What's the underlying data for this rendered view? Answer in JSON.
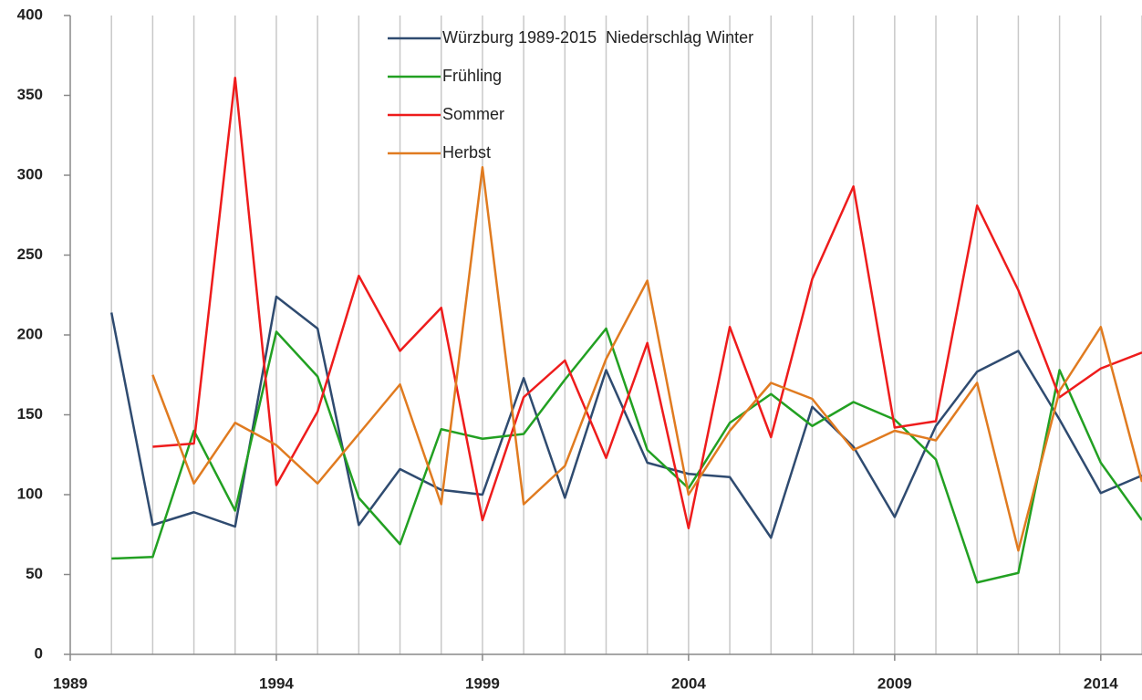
{
  "chart_data": {
    "type": "line",
    "x": [
      1990,
      1991,
      1992,
      1993,
      1994,
      1995,
      1996,
      1997,
      1998,
      1999,
      2000,
      2001,
      2002,
      2003,
      2004,
      2005,
      2006,
      2007,
      2008,
      2009,
      2010,
      2011,
      2012,
      2013,
      2014,
      2015
    ],
    "series": [
      {
        "name": "Würzburg 1989-2015  Niederschlag Winter",
        "color": "#2f4b70",
        "values": [
          214,
          81,
          89,
          80,
          224,
          204,
          81,
          116,
          103,
          100,
          173,
          98,
          178,
          120,
          113,
          111,
          73,
          155,
          130,
          86,
          143,
          177,
          190,
          147,
          101,
          112
        ]
      },
      {
        "name": "Frühling",
        "color": "#22a022",
        "values": [
          60,
          61,
          140,
          90,
          202,
          174,
          98,
          69,
          141,
          135,
          138,
          172,
          204,
          128,
          104,
          145,
          163,
          143,
          158,
          147,
          122,
          45,
          51,
          178,
          120,
          84
        ]
      },
      {
        "name": "Sommer",
        "color": "#ee1c1c",
        "values": [
          null,
          130,
          132,
          361,
          106,
          152,
          237,
          190,
          217,
          84,
          161,
          184,
          123,
          195,
          79,
          205,
          136,
          235,
          293,
          142,
          146,
          281,
          228,
          161,
          179,
          189
        ]
      },
      {
        "name": "Herbst",
        "color": "#e07b20",
        "values": [
          null,
          175,
          107,
          145,
          131,
          107,
          138,
          169,
          94,
          305,
          94,
          118,
          185,
          234,
          100,
          140,
          170,
          160,
          128,
          140,
          134,
          170,
          65,
          165,
          205,
          108
        ]
      }
    ],
    "xlim": [
      1989,
      2015
    ],
    "xticks": [
      1989,
      1994,
      1999,
      2004,
      2009,
      2014
    ],
    "xgrid": [
      1990,
      1991,
      1992,
      1993,
      1994,
      1995,
      1996,
      1997,
      1998,
      1999,
      2000,
      2001,
      2002,
      2003,
      2004,
      2005,
      2006,
      2007,
      2008,
      2009,
      2010,
      2011,
      2012,
      2013,
      2014,
      2015
    ],
    "ylim": [
      0,
      400
    ],
    "yticks": [
      0,
      50,
      100,
      150,
      200,
      250,
      300,
      350,
      400
    ],
    "grid_color": "#c8c8c8",
    "legend": "upper center"
  }
}
